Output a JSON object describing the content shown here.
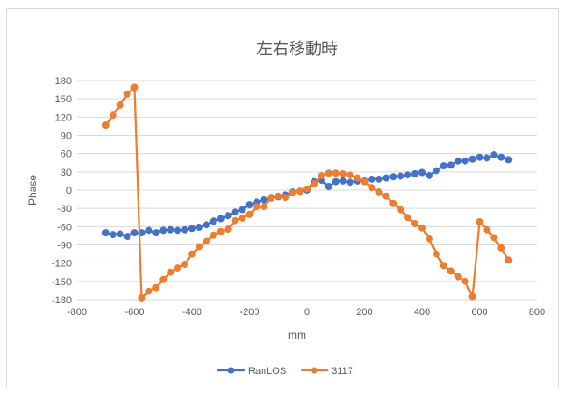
{
  "chart_data": {
    "type": "line",
    "title": "左右移動時",
    "xlabel": "mm",
    "ylabel": "Phase",
    "xlim": [
      -800,
      800
    ],
    "ylim": [
      -180,
      180
    ],
    "x_ticks": [
      "-800",
      "-600",
      "-400",
      "-200",
      "0",
      "200",
      "400",
      "600",
      "800"
    ],
    "y_ticks": [
      "180",
      "150",
      "120",
      "90",
      "60",
      "30",
      "0",
      "-30",
      "-60",
      "-90",
      "-120",
      "-150",
      "-180"
    ],
    "grid": true,
    "legend_position": "bottom",
    "series": [
      {
        "name": "RanLOS",
        "color": "#4472c4",
        "points": [
          [
            -700,
            -70
          ],
          [
            -675,
            -73
          ],
          [
            -650,
            -72
          ],
          [
            -625,
            -76
          ],
          [
            -600,
            -70
          ],
          [
            -575,
            -70
          ],
          [
            -550,
            -66
          ],
          [
            -525,
            -70
          ],
          [
            -500,
            -66
          ],
          [
            -475,
            -65
          ],
          [
            -450,
            -66
          ],
          [
            -425,
            -65
          ],
          [
            -400,
            -63
          ],
          [
            -375,
            -61
          ],
          [
            -350,
            -57
          ],
          [
            -325,
            -51
          ],
          [
            -300,
            -47
          ],
          [
            -275,
            -42
          ],
          [
            -250,
            -36
          ],
          [
            -225,
            -32
          ],
          [
            -200,
            -24
          ],
          [
            -175,
            -20
          ],
          [
            -150,
            -16
          ],
          [
            -125,
            -13
          ],
          [
            -100,
            -11
          ],
          [
            -75,
            -8
          ],
          [
            -50,
            -3
          ],
          [
            -25,
            -2
          ],
          [
            0,
            0
          ],
          [
            25,
            14
          ],
          [
            50,
            16
          ],
          [
            75,
            6
          ],
          [
            100,
            14
          ],
          [
            125,
            15
          ],
          [
            150,
            13
          ],
          [
            175,
            15
          ],
          [
            200,
            15
          ],
          [
            225,
            18
          ],
          [
            250,
            18
          ],
          [
            275,
            20
          ],
          [
            300,
            22
          ],
          [
            325,
            23
          ],
          [
            350,
            25
          ],
          [
            375,
            27
          ],
          [
            400,
            29
          ],
          [
            425,
            24
          ],
          [
            450,
            32
          ],
          [
            475,
            40
          ],
          [
            500,
            41
          ],
          [
            525,
            48
          ],
          [
            550,
            48
          ],
          [
            575,
            51
          ],
          [
            600,
            54
          ],
          [
            625,
            53
          ],
          [
            650,
            58
          ],
          [
            675,
            54
          ],
          [
            700,
            50
          ]
        ]
      },
      {
        "name": "3117",
        "color": "#ed7d31",
        "points": [
          [
            -700,
            107
          ],
          [
            -675,
            123
          ],
          [
            -650,
            140
          ],
          [
            -625,
            158
          ],
          [
            -600,
            169
          ],
          [
            -575,
            -177
          ],
          [
            -550,
            -166
          ],
          [
            -525,
            -160
          ],
          [
            -500,
            -147
          ],
          [
            -475,
            -135
          ],
          [
            -450,
            -128
          ],
          [
            -425,
            -122
          ],
          [
            -400,
            -105
          ],
          [
            -375,
            -93
          ],
          [
            -350,
            -84
          ],
          [
            -325,
            -74
          ],
          [
            -300,
            -68
          ],
          [
            -275,
            -64
          ],
          [
            -250,
            -50
          ],
          [
            -225,
            -46
          ],
          [
            -200,
            -40
          ],
          [
            -175,
            -27
          ],
          [
            -150,
            -27
          ],
          [
            -125,
            -12
          ],
          [
            -100,
            -10
          ],
          [
            -75,
            -12
          ],
          [
            -50,
            -4
          ],
          [
            -25,
            -2
          ],
          [
            0,
            2
          ],
          [
            25,
            10
          ],
          [
            50,
            24
          ],
          [
            75,
            28
          ],
          [
            100,
            28
          ],
          [
            125,
            27
          ],
          [
            150,
            25
          ],
          [
            175,
            20
          ],
          [
            200,
            14
          ],
          [
            225,
            4
          ],
          [
            250,
            -3
          ],
          [
            275,
            -10
          ],
          [
            300,
            -22
          ],
          [
            325,
            -32
          ],
          [
            350,
            -45
          ],
          [
            375,
            -55
          ],
          [
            400,
            -62
          ],
          [
            425,
            -80
          ],
          [
            450,
            -105
          ],
          [
            475,
            -124
          ],
          [
            500,
            -133
          ],
          [
            525,
            -142
          ],
          [
            550,
            -150
          ],
          [
            575,
            -175
          ],
          [
            600,
            -52
          ],
          [
            625,
            -65
          ],
          [
            650,
            -78
          ],
          [
            675,
            -95
          ],
          [
            700,
            -115
          ]
        ]
      }
    ]
  }
}
